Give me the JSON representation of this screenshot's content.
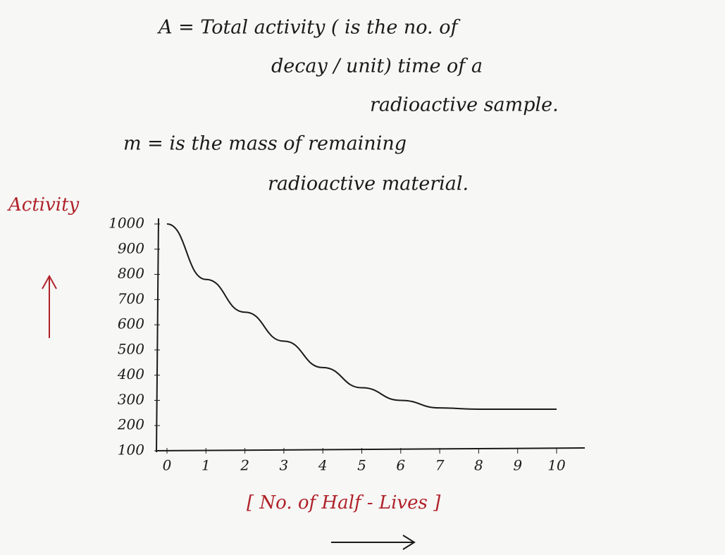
{
  "notes": [
    "A  =  Total activity ( is the no. of",
    "decay / unit) time of a",
    "radioactive sample.",
    "m  =  is the mass of remaining",
    "radioactive material."
  ],
  "chart_data": {
    "type": "line",
    "ylabel": "Activity",
    "xlabel": "[ No. of Half - Lives ]",
    "x": [
      0,
      1,
      2,
      3,
      4,
      5,
      6,
      7,
      8,
      9,
      10
    ],
    "values": [
      1000,
      780,
      650,
      535,
      430,
      350,
      300,
      270,
      265,
      265,
      265
    ],
    "color": "#1a1a1a",
    "xlim": [
      0,
      10
    ],
    "xticks": [
      0,
      1,
      2,
      3,
      4,
      5,
      6,
      7,
      8,
      9,
      10
    ],
    "ylim": [
      100,
      1000
    ],
    "yticks": [
      100,
      200,
      300,
      400,
      500,
      600,
      700,
      800,
      900,
      1000
    ]
  }
}
